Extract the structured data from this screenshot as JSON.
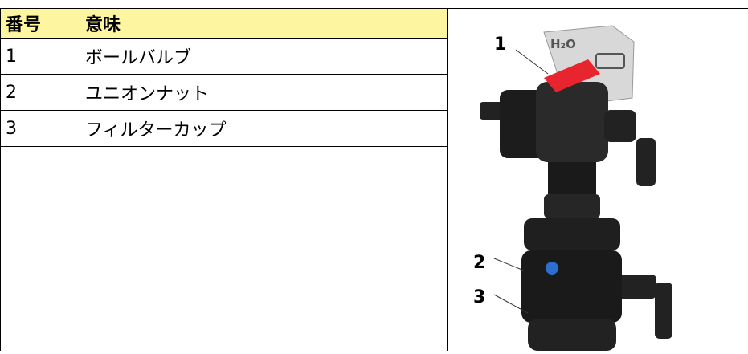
{
  "table": {
    "header": [
      "番号",
      "意味"
    ],
    "rows": [
      [
        "1",
        "ボールバルブ"
      ],
      [
        "2",
        "ユニオンナット"
      ],
      [
        "3",
        "フィルターカップ"
      ]
    ]
  },
  "figure": {
    "tag": "H₂O",
    "callouts": [
      "1",
      "2",
      "3"
    ]
  }
}
